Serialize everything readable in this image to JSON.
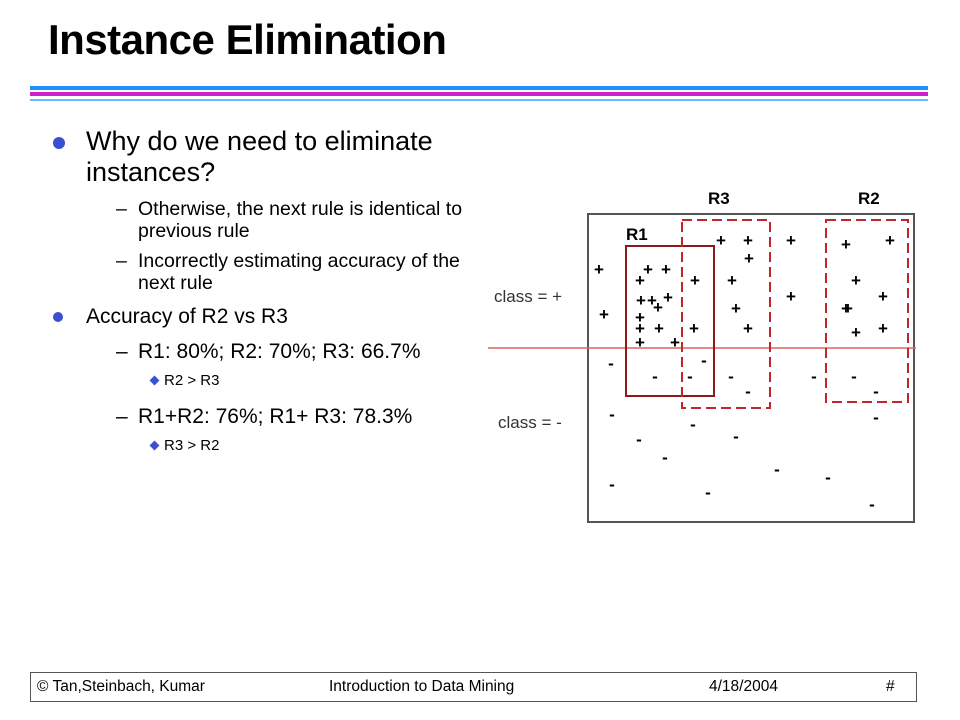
{
  "slide": {
    "title": "Instance Elimination"
  },
  "bullets": {
    "q1": "Why do we need to eliminate instances?",
    "q1_a": "Otherwise, the next rule is identical to previous rule",
    "q1_b": "Incorrectly estimating accuracy of the next rule",
    "q2": "Accuracy of R2 vs R3",
    "q2_a": "R1: 80%; R2: 70%; R3: 66.7%",
    "q2_a_sub": "R2 > R3",
    "q2_b": "R1+R2: 76%; R1+ R3: 78.3%",
    "q2_b_sub": "R3 > R2",
    "dash": "–"
  },
  "diagram": {
    "labels": {
      "r1": "R1",
      "r2": "R2",
      "r3": "R3",
      "class_pos": "class = +",
      "class_neg": "class = -"
    },
    "plus_symbol": "+",
    "minus_symbol": "-",
    "colors": {
      "r1_border": "#8b1a1a",
      "r2_r3_border": "#c0262a",
      "class_divider": "#e06060",
      "bullet": "#3b4fd1"
    }
  },
  "footer": {
    "left": "© Tan,Steinbach, Kumar",
    "center": "Introduction to Data Mining",
    "date": "4/18/2004",
    "page": "#"
  }
}
